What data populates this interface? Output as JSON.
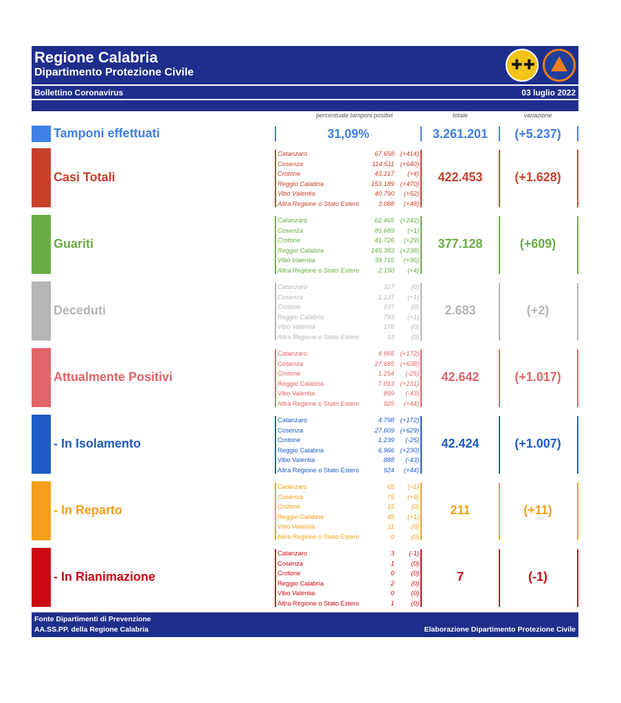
{
  "header": {
    "title": "Regione Calabria",
    "subtitle": "Dipartimento Protezione Civile",
    "bulletin": "Bollettino Coronavirus",
    "date": "03 luglio 2022"
  },
  "columns": {
    "positivity": "percentuale tamponi positivi",
    "total": "totale",
    "change": "variazione"
  },
  "tests": {
    "label": "Tamponi effettuati",
    "positivity": "31,09%",
    "total": "3.261.201",
    "change": "(+5.237)",
    "color": "#3f7fe6"
  },
  "province_names": [
    "Catanzaro",
    "Cosenza",
    "Crotone",
    "Reggio Calabria",
    "Vibo Valentia",
    "Altra Regione o Stato Estero"
  ],
  "sections": [
    {
      "label": "Casi Totali",
      "color": "#c8402a",
      "total": "422.453",
      "change": "(+1.628)",
      "italic": true,
      "values": [
        "67.658",
        "114.511",
        "43.217",
        "153.189",
        "40.790",
        "3.088"
      ],
      "deltas": [
        "(+414)",
        "(+640)",
        "(+4)",
        "(+470)",
        "(+52)",
        "(+48)"
      ]
    },
    {
      "label": "Guariti",
      "color": "#6aac44",
      "total": "377.128",
      "change": "(+609)",
      "italic": true,
      "values": [
        "62.465",
        "85.689",
        "41.726",
        "145.383",
        "39.715",
        "2.150"
      ],
      "deltas": [
        "(+242)",
        "(+1)",
        "(+29)",
        "(+238)",
        "(+95)",
        "(+4)"
      ]
    },
    {
      "label": "Deceduti",
      "color": "#b5b5b5",
      "total": "2.683",
      "change": "(+2)",
      "italic": true,
      "values": [
        "327",
        "1.137",
        "237",
        "793",
        "176",
        "13"
      ],
      "deltas": [
        "(0)",
        "(+1)",
        "(0)",
        "(+1)",
        "(0)",
        "(0)"
      ]
    },
    {
      "label": "Attualmente Positivi",
      "color": "#e06468",
      "total": "42.642",
      "change": "(+1.017)",
      "italic": false,
      "values": [
        "4.866",
        "27.685",
        "1.254",
        "7.013",
        "899",
        "925"
      ],
      "deltas": [
        "(+172)",
        "(+638)",
        "(-25)",
        "(+231)",
        "(-43)",
        "(+44)"
      ]
    },
    {
      "label": " - In Isolamento",
      "color": "#1f5cc8",
      "total": "42.424",
      "change": "(+1.007)",
      "italic": false,
      "values": [
        "4.798",
        "27.609",
        "1.239",
        "6.966",
        "888",
        "924"
      ],
      "deltas": [
        "(+172)",
        "(+629)",
        "(-25)",
        "(+230)",
        "(-43)",
        "(+44)"
      ]
    },
    {
      "label": " - In Reparto",
      "color": "#f5a01a",
      "total": "211",
      "change": "(+11)",
      "italic": false,
      "values": [
        "65",
        "75",
        "15",
        "45",
        "11",
        "0"
      ],
      "deltas": [
        "(+1)",
        "(+9)",
        "(0)",
        "(+1)",
        "(0)",
        "(0)"
      ]
    },
    {
      "label": " - In Rianimazione",
      "color": "#cc0a14",
      "total": "7",
      "change": "(-1)",
      "italic": false,
      "values": [
        "3",
        "1",
        "0",
        "2",
        "0",
        "1"
      ],
      "deltas": [
        "(-1)",
        "(0)",
        "(0)",
        "(0)",
        "(0)",
        "(0)"
      ]
    }
  ],
  "footer": {
    "source_line1": "Fonte Dipartimenti di Prevenzione",
    "source_line2": "AA.SS.PP.  della Regione Calabria",
    "credit": "Elaborazione Dipartimento Protezione Civile"
  }
}
